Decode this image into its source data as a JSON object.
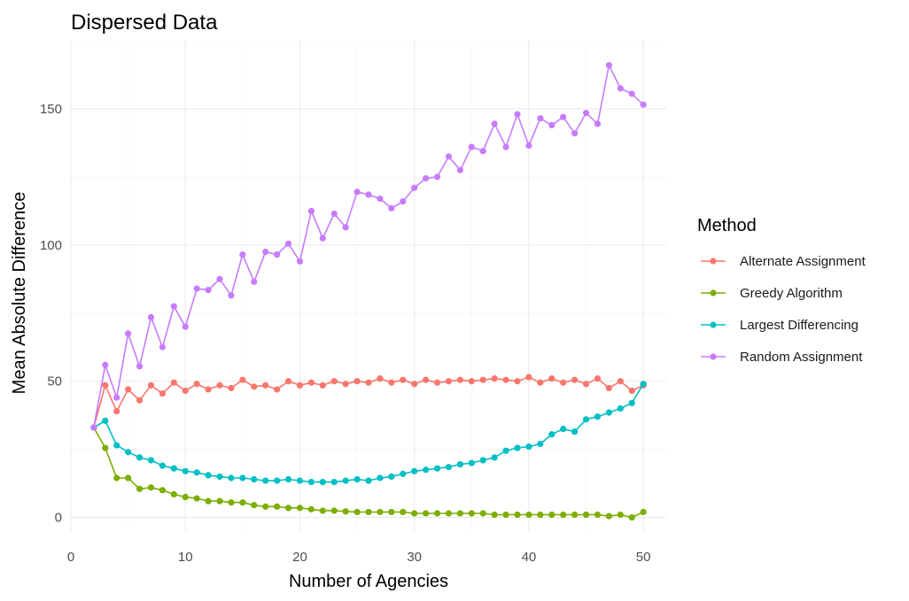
{
  "chart_data": {
    "type": "line",
    "title": "Dispersed Data",
    "xlabel": "Number of Agencies",
    "ylabel": "Mean Absolute Difference",
    "xlim": [
      0,
      52
    ],
    "ylim": [
      -5,
      175
    ],
    "x_ticks": [
      0,
      10,
      20,
      30,
      40,
      50
    ],
    "y_ticks": [
      0,
      50,
      100,
      150
    ],
    "grid": true,
    "legend_title": "Method",
    "legend_position": "right",
    "x": [
      2,
      3,
      4,
      5,
      6,
      7,
      8,
      9,
      10,
      11,
      12,
      13,
      14,
      15,
      16,
      17,
      18,
      19,
      20,
      21,
      22,
      23,
      24,
      25,
      26,
      27,
      28,
      29,
      30,
      31,
      32,
      33,
      34,
      35,
      36,
      37,
      38,
      39,
      40,
      41,
      42,
      43,
      44,
      45,
      46,
      47,
      48,
      49,
      50
    ],
    "series": [
      {
        "name": "Alternate Assignment",
        "color": "#F8766D",
        "values": [
          33,
          48.5,
          39,
          47,
          43,
          48.5,
          45.5,
          49.5,
          46.5,
          49,
          47,
          48.5,
          47.5,
          50.5,
          48,
          48.5,
          47,
          50,
          48.5,
          49.5,
          48.5,
          50,
          49,
          50,
          49.5,
          51,
          49.5,
          50.5,
          49,
          50.5,
          49.5,
          50,
          50.5,
          50,
          50.5,
          51,
          50.5,
          50,
          51.5,
          49.5,
          51,
          49.5,
          50.5,
          49,
          51,
          47.5,
          50,
          46.5,
          48.5
        ]
      },
      {
        "name": "Greedy Algorithm",
        "color": "#7CAE00",
        "values": [
          33,
          25.5,
          14.5,
          14.5,
          10.5,
          11,
          10,
          8.5,
          7.5,
          7,
          6,
          6,
          5.5,
          5.5,
          4.5,
          4,
          4,
          3.5,
          3.5,
          3,
          2.5,
          2.5,
          2.2,
          2,
          2,
          2,
          2,
          2,
          1.5,
          1.5,
          1.5,
          1.5,
          1.5,
          1.5,
          1.5,
          1,
          1,
          1,
          1,
          1,
          1,
          1,
          1,
          1,
          1,
          0.5,
          1,
          0,
          2
        ]
      },
      {
        "name": "Largest Differencing",
        "color": "#00BFC4",
        "values": [
          33,
          35.5,
          26.5,
          24,
          22,
          21,
          19,
          18,
          17,
          16.5,
          15.5,
          15,
          14.5,
          14.5,
          14,
          13.5,
          13.5,
          14,
          13.5,
          13,
          13,
          13,
          13.5,
          14,
          13.5,
          14.5,
          15,
          16,
          17,
          17.5,
          18,
          18.5,
          19.5,
          20,
          21,
          22,
          24.5,
          25.5,
          26,
          27,
          30.5,
          32.5,
          31.5,
          36,
          37,
          38.5,
          40,
          42,
          49
        ]
      },
      {
        "name": "Random Assignment",
        "color": "#C77CFF",
        "values": [
          33,
          56,
          44,
          67.5,
          55.5,
          73.5,
          62.5,
          77.5,
          70,
          84,
          83.5,
          87.5,
          81.5,
          96.5,
          86.5,
          97.5,
          96.5,
          100.5,
          94,
          112.5,
          102.5,
          111.5,
          106.5,
          119.5,
          118.5,
          117,
          113.5,
          116,
          121,
          124.5,
          125,
          132.5,
          127.5,
          136,
          134.5,
          144.5,
          136,
          148,
          136.5,
          146.5,
          144,
          147,
          141,
          148.5,
          144.5,
          166,
          157.5,
          155.5,
          151.5
        ]
      }
    ]
  }
}
